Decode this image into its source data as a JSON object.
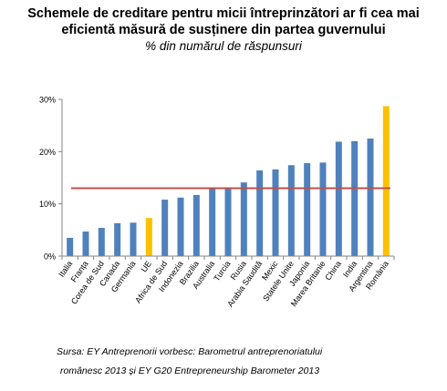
{
  "chart_data": {
    "type": "bar",
    "title_lines": [
      "Schemele de creditare pentru micii întreprinzători ar fi cea mai",
      "eficientă măsură de susținere din partea guvernului"
    ],
    "subtitle": "% din numărul de răspunsuri",
    "ylim": [
      0,
      30
    ],
    "yticks": [
      "0%",
      "10%",
      "20%",
      "30%"
    ],
    "grid": false,
    "categories": [
      "Italia",
      "Franța",
      "Corea de Sud",
      "Canada",
      "Germania",
      "UE",
      "Africa de Sud",
      "Indonezia",
      "Brazilia",
      "Australia",
      "Turcia",
      "Rusia",
      "Arabia Saudită",
      "Mexic",
      "Statele Unite",
      "Japonia",
      "Marea Britanie",
      "China",
      "India",
      "Argentina",
      "România"
    ],
    "values": [
      3.5,
      4.7,
      5.4,
      6.3,
      6.4,
      7.3,
      10.8,
      11.2,
      11.7,
      12.9,
      13.0,
      14.1,
      16.4,
      16.6,
      17.4,
      17.8,
      17.9,
      21.9,
      22.0,
      22.5,
      28.7
    ],
    "highlight_categories": [
      "UE",
      "România"
    ],
    "reference_line": 13.0,
    "colors": {
      "bar": "#4F81BD",
      "highlight": "#FFC000",
      "reference_line": "#C0504D",
      "axis": "#868686"
    }
  },
  "source_lines": [
    "Sursa: EY Antreprenorii vorbesc: Barometrul antreprenoriatului",
    "românesc 2013 și EY G20 Entrepreneurship Barometer 2013"
  ]
}
